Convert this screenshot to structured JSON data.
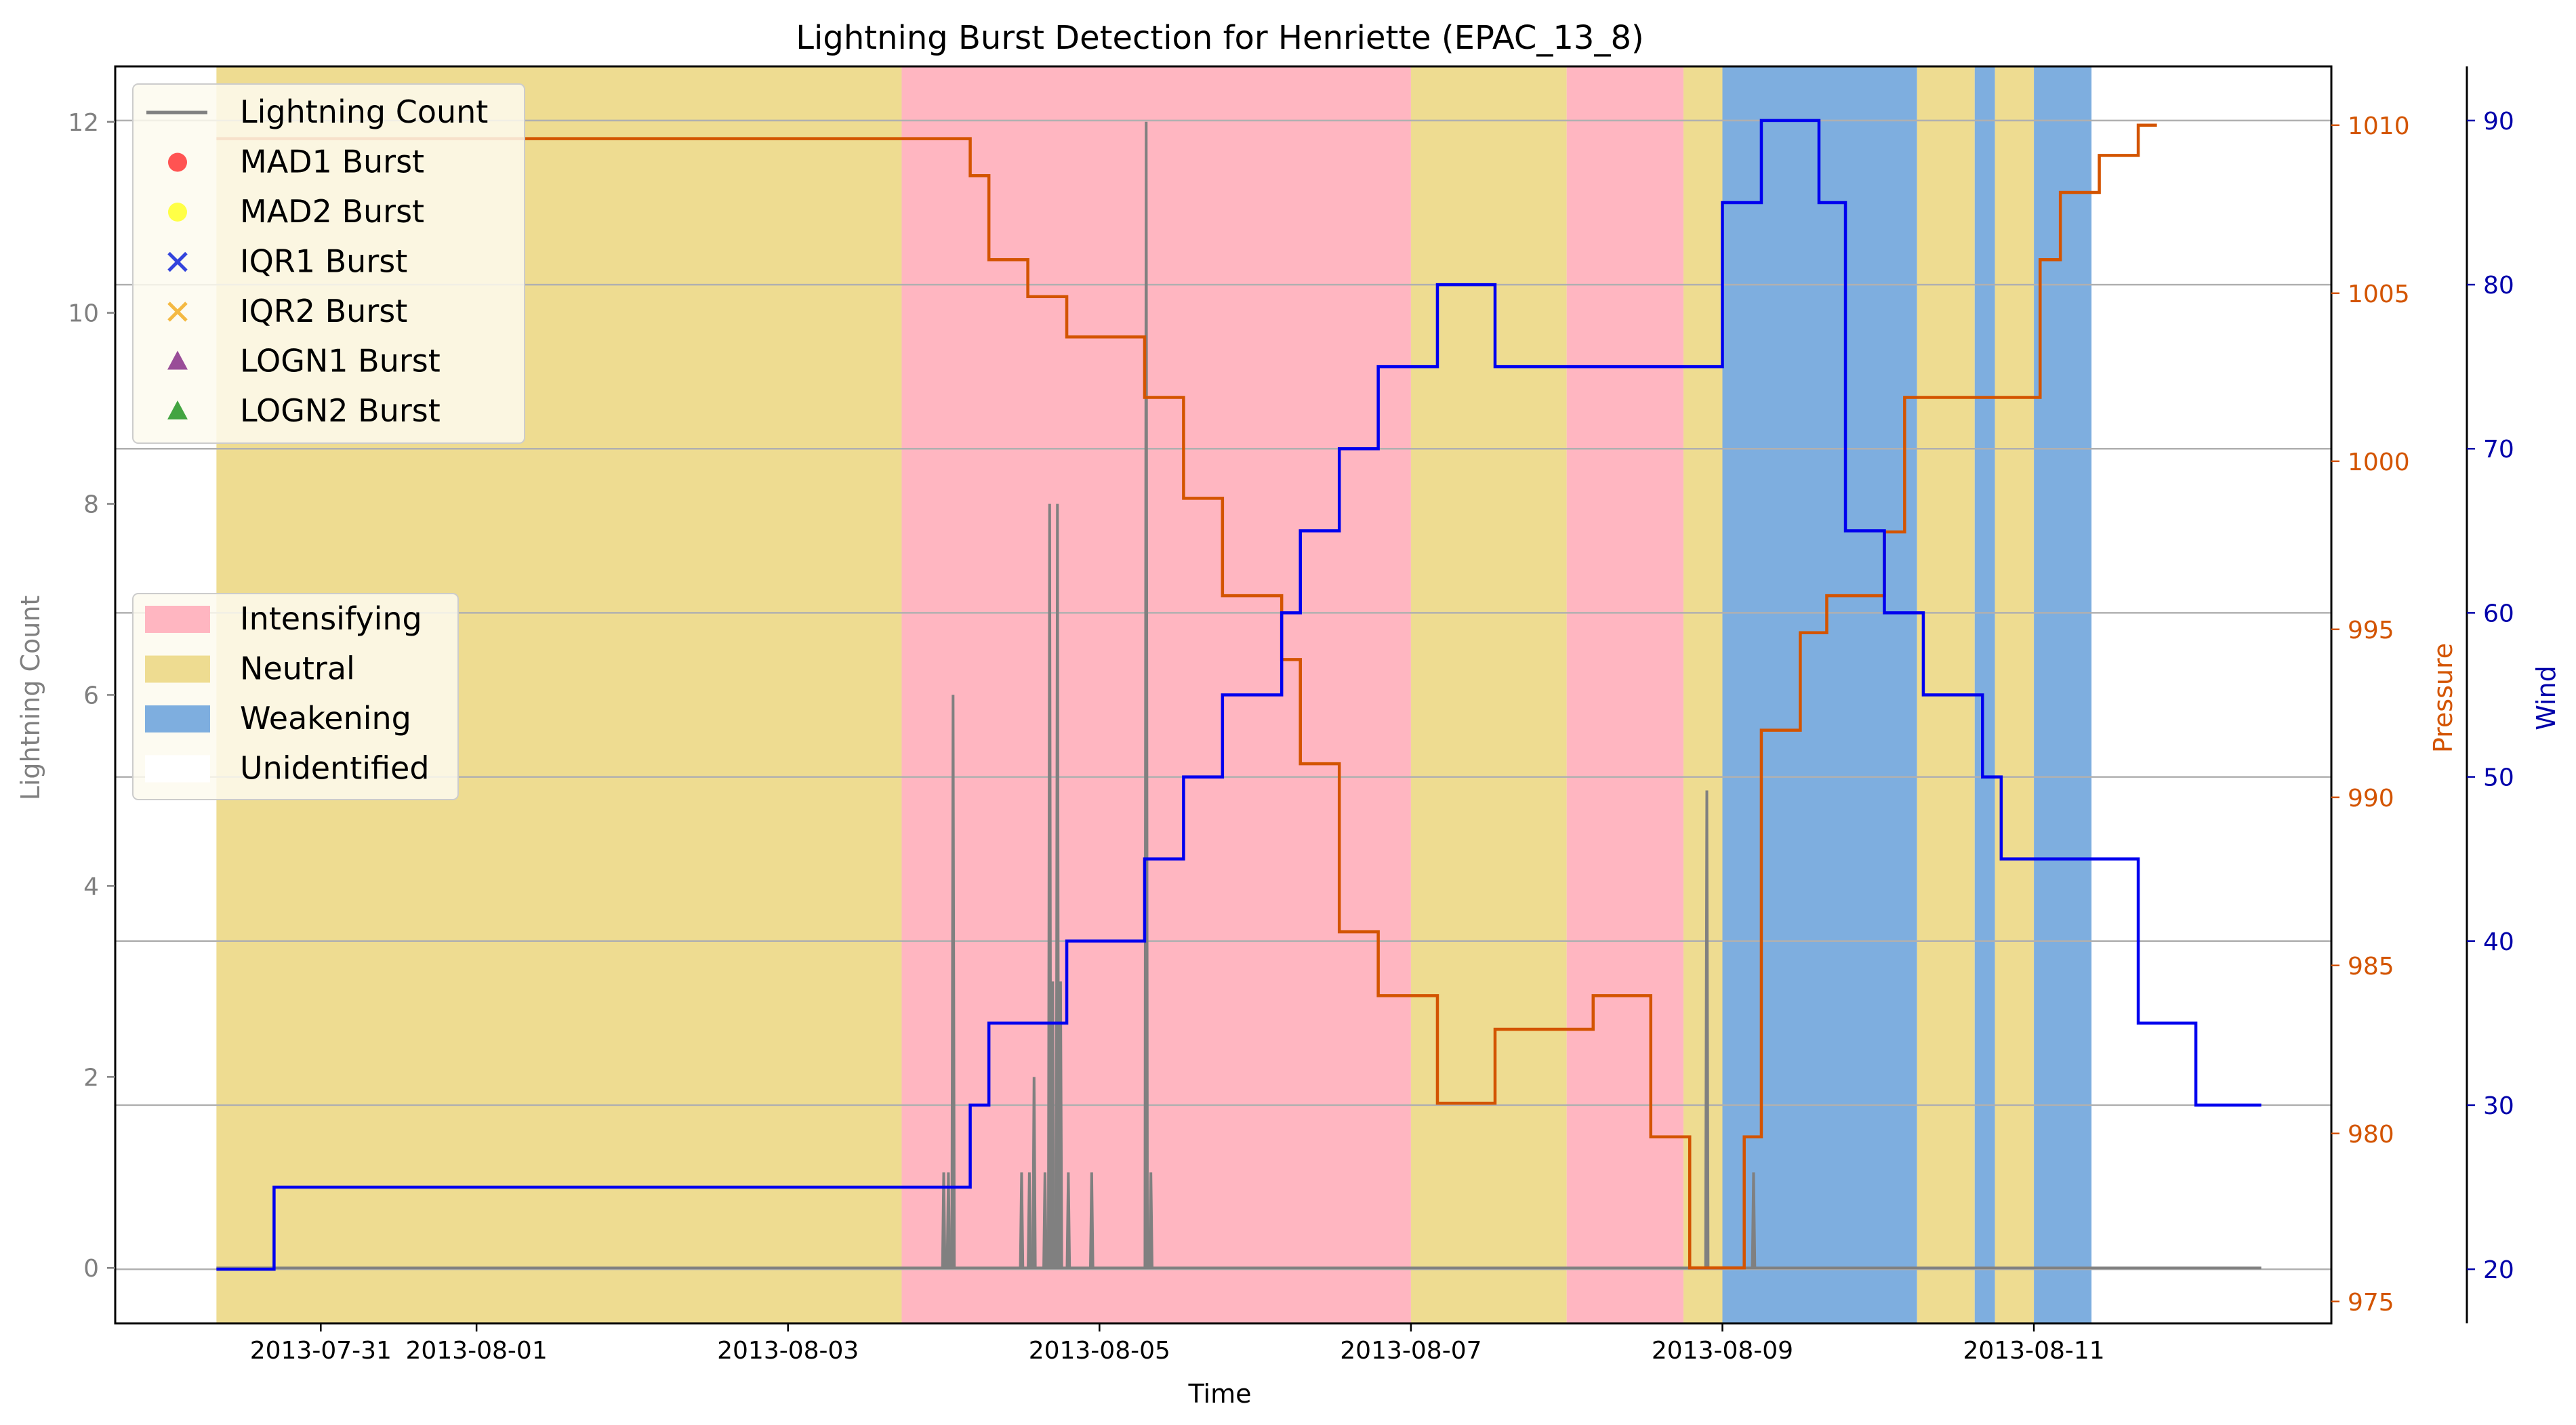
{
  "chart_data": {
    "type": "line",
    "title": "Lightning Burst Detection for Henriette (EPAC_13_8)",
    "xlabel": "Time",
    "ylabel_left": "Lightning Count",
    "ylabel_pressure": "Pressure",
    "ylabel_wind": "Wind",
    "xlim": [
      -0.32,
      13.91
    ],
    "ylim_left": [
      -0.58,
      12.58
    ],
    "ylim_pressure": [
      974.35,
      1011.75
    ],
    "ylim_wind": [
      16.7,
      93.3
    ],
    "x_ticks": [
      {
        "label": "2013-07-31",
        "x": 1.0
      },
      {
        "label": "2013-08-01",
        "x": 2.0
      },
      {
        "label": "2013-08-03",
        "x": 4.0
      },
      {
        "label": "2013-08-05",
        "x": 6.0
      },
      {
        "label": "2013-08-07",
        "x": 8.0
      },
      {
        "label": "2013-08-09",
        "x": 10.0
      },
      {
        "label": "2013-08-11",
        "x": 12.0
      }
    ],
    "y_ticks_left": [
      "0",
      "2",
      "4",
      "6",
      "8",
      "10",
      "12"
    ],
    "y_ticks_pressure": [
      "975",
      "980",
      "985",
      "990",
      "995",
      "1000",
      "1005",
      "1010"
    ],
    "y_ticks_wind": [
      "20",
      "30",
      "40",
      "50",
      "60",
      "70",
      "80",
      "90"
    ],
    "colors": {
      "lightning": "#808080",
      "pressure": "#d35400",
      "wind": "#0000ee",
      "intensifying": "#ffb6c1",
      "neutral": "#eedc91",
      "weakening": "#7eaedf",
      "grid": "#b0b0b0"
    },
    "phases": [
      {
        "phase": "Neutral",
        "start": 0.33,
        "end": 4.73
      },
      {
        "phase": "Intensifying",
        "start": 4.73,
        "end": 8.0
      },
      {
        "phase": "Neutral",
        "start": 8.0,
        "end": 9.0
      },
      {
        "phase": "Intensifying",
        "start": 9.0,
        "end": 9.75
      },
      {
        "phase": "Neutral",
        "start": 9.75,
        "end": 10.0
      },
      {
        "phase": "Weakening",
        "start": 10.0,
        "end": 11.25
      },
      {
        "phase": "Neutral",
        "start": 11.25,
        "end": 11.62
      },
      {
        "phase": "Weakening",
        "start": 11.62,
        "end": 11.75
      },
      {
        "phase": "Neutral",
        "start": 11.75,
        "end": 12.0
      },
      {
        "phase": "Weakening",
        "start": 12.0,
        "end": 12.37
      }
    ],
    "lightning_spikes": [
      {
        "x": 5.0,
        "y": 1
      },
      {
        "x": 5.03,
        "y": 1
      },
      {
        "x": 5.06,
        "y": 6
      },
      {
        "x": 5.5,
        "y": 1
      },
      {
        "x": 5.55,
        "y": 1
      },
      {
        "x": 5.58,
        "y": 2
      },
      {
        "x": 5.65,
        "y": 1
      },
      {
        "x": 5.68,
        "y": 8
      },
      {
        "x": 5.7,
        "y": 3
      },
      {
        "x": 5.73,
        "y": 8
      },
      {
        "x": 5.75,
        "y": 3
      },
      {
        "x": 5.8,
        "y": 1
      },
      {
        "x": 5.95,
        "y": 1
      },
      {
        "x": 6.3,
        "y": 12
      },
      {
        "x": 6.33,
        "y": 1
      },
      {
        "x": 9.9,
        "y": 5
      },
      {
        "x": 10.2,
        "y": 1
      }
    ],
    "pressure": [
      [
        0.33,
        1009.6
      ],
      [
        5.17,
        1009.6
      ],
      [
        5.17,
        1008.5
      ],
      [
        5.29,
        1008.5
      ],
      [
        5.29,
        1006.0
      ],
      [
        5.54,
        1006.0
      ],
      [
        5.54,
        1004.9
      ],
      [
        5.79,
        1004.9
      ],
      [
        5.79,
        1003.7
      ],
      [
        6.29,
        1003.7
      ],
      [
        6.29,
        1001.9
      ],
      [
        6.54,
        1001.9
      ],
      [
        6.54,
        998.9
      ],
      [
        6.79,
        998.9
      ],
      [
        6.79,
        996.0
      ],
      [
        7.17,
        996.0
      ],
      [
        7.17,
        994.1
      ],
      [
        7.29,
        994.1
      ],
      [
        7.29,
        991.0
      ],
      [
        7.54,
        991.0
      ],
      [
        7.54,
        986.0
      ],
      [
        7.79,
        986.0
      ],
      [
        7.79,
        984.1
      ],
      [
        8.17,
        984.1
      ],
      [
        8.17,
        980.9
      ],
      [
        8.54,
        980.9
      ],
      [
        8.54,
        983.1
      ],
      [
        9.17,
        983.1
      ],
      [
        9.17,
        984.1
      ],
      [
        9.54,
        984.1
      ],
      [
        9.54,
        979.9
      ],
      [
        9.79,
        979.9
      ],
      [
        9.79,
        976.0
      ],
      [
        10.14,
        976.0
      ],
      [
        10.14,
        979.9
      ],
      [
        10.25,
        979.9
      ],
      [
        10.25,
        992.0
      ],
      [
        10.5,
        992.0
      ],
      [
        10.5,
        994.9
      ],
      [
        10.67,
        994.9
      ],
      [
        10.67,
        996.0
      ],
      [
        11.04,
        996.0
      ],
      [
        11.04,
        997.9
      ],
      [
        11.17,
        997.9
      ],
      [
        11.17,
        1001.9
      ],
      [
        11.67,
        1001.9
      ],
      [
        12.04,
        1001.9
      ],
      [
        12.04,
        1006.0
      ],
      [
        12.17,
        1006.0
      ],
      [
        12.17,
        1008.0
      ],
      [
        12.42,
        1008.0
      ],
      [
        12.42,
        1009.1
      ],
      [
        12.67,
        1009.1
      ],
      [
        12.67,
        1010.0
      ],
      [
        12.79,
        1010.0
      ]
    ],
    "wind": [
      [
        0.33,
        20
      ],
      [
        0.7,
        20
      ],
      [
        0.7,
        25
      ],
      [
        5.17,
        25
      ],
      [
        5.17,
        30
      ],
      [
        5.29,
        30
      ],
      [
        5.29,
        35
      ],
      [
        5.79,
        35
      ],
      [
        5.79,
        40
      ],
      [
        6.29,
        40
      ],
      [
        6.29,
        45
      ],
      [
        6.54,
        45
      ],
      [
        6.54,
        50
      ],
      [
        6.79,
        50
      ],
      [
        6.79,
        55
      ],
      [
        7.17,
        55
      ],
      [
        7.17,
        60
      ],
      [
        7.29,
        60
      ],
      [
        7.29,
        65
      ],
      [
        7.54,
        65
      ],
      [
        7.54,
        70
      ],
      [
        7.79,
        70
      ],
      [
        7.79,
        75
      ],
      [
        8.17,
        75
      ],
      [
        8.17,
        80
      ],
      [
        8.54,
        80
      ],
      [
        8.54,
        75
      ],
      [
        10.0,
        75
      ],
      [
        10.0,
        85
      ],
      [
        10.25,
        85
      ],
      [
        10.25,
        90
      ],
      [
        10.62,
        90
      ],
      [
        10.62,
        85
      ],
      [
        10.79,
        85
      ],
      [
        10.79,
        65
      ],
      [
        11.04,
        65
      ],
      [
        11.04,
        60
      ],
      [
        11.29,
        60
      ],
      [
        11.29,
        55
      ],
      [
        11.67,
        55
      ],
      [
        11.67,
        50
      ],
      [
        11.79,
        50
      ],
      [
        11.79,
        45
      ],
      [
        12.67,
        45
      ],
      [
        12.67,
        35
      ],
      [
        13.04,
        35
      ],
      [
        13.04,
        30
      ],
      [
        13.46,
        30
      ]
    ]
  },
  "legend_markers": [
    {
      "label": "Lightning Count",
      "kind": "line",
      "color": "#808080"
    },
    {
      "label": "MAD1 Burst",
      "kind": "circle",
      "color": "#ff4040"
    },
    {
      "label": "MAD2 Burst",
      "kind": "circle",
      "color": "#ffff33"
    },
    {
      "label": "IQR1 Burst",
      "kind": "x",
      "color": "#3344dd"
    },
    {
      "label": "IQR2 Burst",
      "kind": "x",
      "color": "#f4b942"
    },
    {
      "label": "LOGN1 Burst",
      "kind": "triangle",
      "color": "#8e3a8e"
    },
    {
      "label": "LOGN2 Burst",
      "kind": "triangle",
      "color": "#2e9a2e"
    }
  ],
  "legend_phases": [
    {
      "label": "Intensifying",
      "color": "#ffb6c1"
    },
    {
      "label": "Neutral",
      "color": "#eedc91"
    },
    {
      "label": "Weakening",
      "color": "#7eaedf"
    },
    {
      "label": "Unidentified",
      "color": "#ffffff"
    }
  ]
}
